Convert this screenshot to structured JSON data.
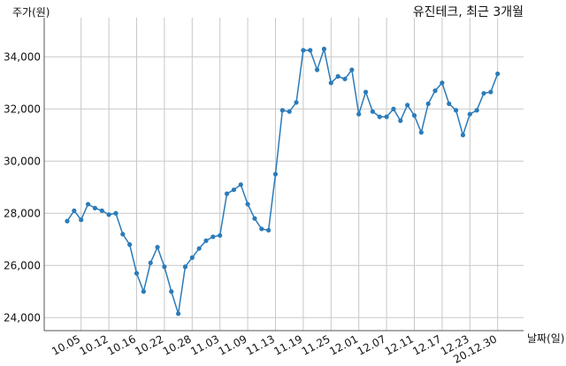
{
  "chart_data": {
    "type": "line",
    "title": "유진테크, 최근 3개월",
    "xlabel": "날짜(일)",
    "ylabel": "주가(원)",
    "ylim": [
      23500,
      35500
    ],
    "yticks": [
      24000,
      26000,
      28000,
      30000,
      32000,
      34000
    ],
    "ytick_labels": [
      "24,000",
      "26,000",
      "28,000",
      "30,000",
      "32,000",
      "34,000"
    ],
    "xtick_labels": [
      "10.05",
      "10.12",
      "10.16",
      "10.22",
      "10.28",
      "11.03",
      "11.09",
      "11.13",
      "11.19",
      "11.25",
      "12.01",
      "12.07",
      "12.11",
      "12.17",
      "12.23",
      "20.12.30"
    ],
    "xtick_positions": [
      2,
      6,
      10,
      14,
      18,
      22,
      26,
      30,
      34,
      38,
      42,
      46,
      50,
      54,
      58,
      62
    ],
    "grid": true,
    "line_color": "#2b7bb9",
    "values": [
      27700,
      28100,
      27750,
      28350,
      28200,
      28100,
      27950,
      28000,
      27200,
      26800,
      25700,
      25000,
      26100,
      26700,
      25950,
      25000,
      24150,
      25950,
      26300,
      26650,
      26950,
      27100,
      27150,
      28750,
      28900,
      29100,
      28350,
      27800,
      27400,
      27350,
      29500,
      31950,
      31900,
      32250,
      34250,
      34250,
      33500,
      34300,
      33000,
      33250,
      33150,
      33500,
      31800,
      32650,
      31900,
      31700,
      31700,
      32000,
      31550,
      32150,
      31750,
      31100,
      32200,
      32700,
      33000,
      32200,
      31950,
      31000,
      31800,
      31950,
      32600,
      32650,
      33350
    ]
  }
}
